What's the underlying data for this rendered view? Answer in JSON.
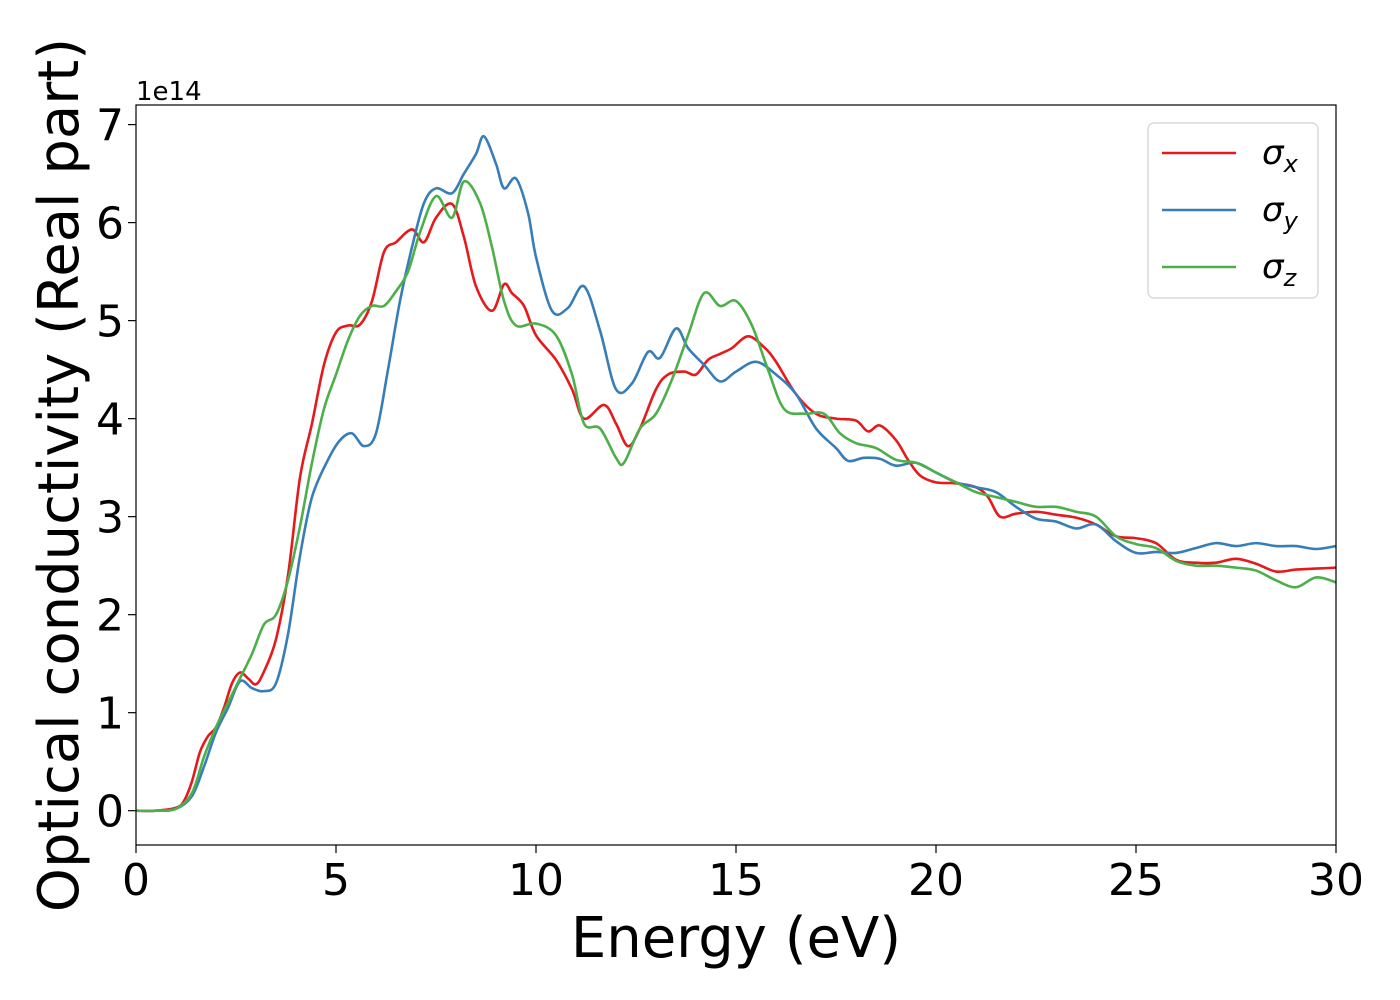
{
  "chart_data": {
    "type": "line",
    "title": "",
    "xlabel": "Energy (eV)",
    "ylabel": "Optical conductivity (Real part)",
    "y_multiplier": "1e14",
    "xlim": [
      0,
      30
    ],
    "ylim": [
      -0.35,
      7.2
    ],
    "x_ticks": [
      0,
      5,
      10,
      15,
      20,
      25,
      30
    ],
    "x_tick_labels": [
      "0",
      "5",
      "10",
      "15",
      "20",
      "25",
      "30"
    ],
    "y_ticks": [
      0,
      1,
      2,
      3,
      4,
      5,
      6,
      7
    ],
    "y_tick_labels": [
      "0",
      "1",
      "2",
      "3",
      "4",
      "5",
      "6",
      "7"
    ],
    "grid": false,
    "legend_position": "top-right",
    "series": [
      {
        "name": "σx",
        "legend_base": "σ",
        "legend_sub": "x",
        "color": "#e41a1c",
        "points": [
          [
            0,
            0
          ],
          [
            0.5,
            0
          ],
          [
            1.0,
            0.03
          ],
          [
            1.2,
            0.1
          ],
          [
            1.4,
            0.3
          ],
          [
            1.6,
            0.6
          ],
          [
            1.8,
            0.76
          ],
          [
            2.0,
            0.85
          ],
          [
            2.2,
            1.05
          ],
          [
            2.4,
            1.3
          ],
          [
            2.6,
            1.41
          ],
          [
            2.8,
            1.35
          ],
          [
            3.0,
            1.29
          ],
          [
            3.2,
            1.42
          ],
          [
            3.5,
            1.75
          ],
          [
            3.8,
            2.4
          ],
          [
            4.1,
            3.4
          ],
          [
            4.4,
            3.95
          ],
          [
            4.7,
            4.55
          ],
          [
            5.0,
            4.88
          ],
          [
            5.3,
            4.95
          ],
          [
            5.6,
            4.96
          ],
          [
            5.9,
            5.2
          ],
          [
            6.2,
            5.7
          ],
          [
            6.5,
            5.8
          ],
          [
            6.9,
            5.93
          ],
          [
            7.2,
            5.8
          ],
          [
            7.5,
            6.05
          ],
          [
            7.9,
            6.19
          ],
          [
            8.2,
            5.85
          ],
          [
            8.5,
            5.35
          ],
          [
            8.9,
            5.1
          ],
          [
            9.2,
            5.37
          ],
          [
            9.4,
            5.28
          ],
          [
            9.7,
            5.15
          ],
          [
            10.0,
            4.85
          ],
          [
            10.5,
            4.6
          ],
          [
            10.9,
            4.3
          ],
          [
            11.2,
            4.0
          ],
          [
            11.7,
            4.14
          ],
          [
            12.0,
            3.95
          ],
          [
            12.3,
            3.72
          ],
          [
            12.6,
            3.9
          ],
          [
            13.0,
            4.3
          ],
          [
            13.3,
            4.45
          ],
          [
            13.7,
            4.48
          ],
          [
            14.0,
            4.45
          ],
          [
            14.3,
            4.6
          ],
          [
            14.6,
            4.66
          ],
          [
            14.9,
            4.72
          ],
          [
            15.3,
            4.84
          ],
          [
            15.7,
            4.73
          ],
          [
            16.0,
            4.58
          ],
          [
            16.5,
            4.25
          ],
          [
            17.0,
            4.05
          ],
          [
            17.5,
            4.0
          ],
          [
            18.0,
            3.98
          ],
          [
            18.3,
            3.87
          ],
          [
            18.6,
            3.93
          ],
          [
            19.0,
            3.78
          ],
          [
            19.3,
            3.58
          ],
          [
            19.6,
            3.42
          ],
          [
            20.0,
            3.35
          ],
          [
            20.5,
            3.34
          ],
          [
            21.0,
            3.3
          ],
          [
            21.3,
            3.2
          ],
          [
            21.6,
            3.0
          ],
          [
            22.0,
            3.03
          ],
          [
            22.5,
            3.05
          ],
          [
            23.0,
            3.02
          ],
          [
            23.5,
            2.99
          ],
          [
            24.0,
            2.92
          ],
          [
            24.5,
            2.8
          ],
          [
            25.0,
            2.78
          ],
          [
            25.5,
            2.73
          ],
          [
            26.0,
            2.56
          ],
          [
            26.5,
            2.53
          ],
          [
            27.0,
            2.53
          ],
          [
            27.5,
            2.57
          ],
          [
            28.0,
            2.52
          ],
          [
            28.5,
            2.44
          ],
          [
            29.0,
            2.46
          ],
          [
            29.5,
            2.47
          ],
          [
            30.0,
            2.48
          ]
        ]
      },
      {
        "name": "σy",
        "legend_base": "σ",
        "legend_sub": "y",
        "color": "#377eb8",
        "points": [
          [
            0,
            0
          ],
          [
            0.5,
            0
          ],
          [
            1.0,
            0.02
          ],
          [
            1.4,
            0.15
          ],
          [
            1.7,
            0.45
          ],
          [
            2.0,
            0.8
          ],
          [
            2.3,
            1.05
          ],
          [
            2.6,
            1.32
          ],
          [
            2.9,
            1.25
          ],
          [
            3.2,
            1.22
          ],
          [
            3.5,
            1.3
          ],
          [
            3.8,
            1.8
          ],
          [
            4.1,
            2.6
          ],
          [
            4.4,
            3.2
          ],
          [
            4.8,
            3.58
          ],
          [
            5.1,
            3.78
          ],
          [
            5.4,
            3.85
          ],
          [
            5.7,
            3.72
          ],
          [
            6.0,
            3.85
          ],
          [
            6.3,
            4.5
          ],
          [
            6.6,
            5.2
          ],
          [
            6.9,
            5.75
          ],
          [
            7.2,
            6.2
          ],
          [
            7.5,
            6.35
          ],
          [
            7.9,
            6.3
          ],
          [
            8.2,
            6.5
          ],
          [
            8.5,
            6.7
          ],
          [
            8.7,
            6.88
          ],
          [
            9.0,
            6.6
          ],
          [
            9.2,
            6.35
          ],
          [
            9.5,
            6.45
          ],
          [
            9.8,
            6.1
          ],
          [
            10.0,
            5.65
          ],
          [
            10.4,
            5.1
          ],
          [
            10.8,
            5.13
          ],
          [
            11.2,
            5.35
          ],
          [
            11.6,
            4.9
          ],
          [
            12.0,
            4.3
          ],
          [
            12.4,
            4.36
          ],
          [
            12.8,
            4.68
          ],
          [
            13.1,
            4.62
          ],
          [
            13.5,
            4.92
          ],
          [
            13.8,
            4.72
          ],
          [
            14.2,
            4.55
          ],
          [
            14.6,
            4.38
          ],
          [
            15.0,
            4.48
          ],
          [
            15.5,
            4.58
          ],
          [
            16.0,
            4.45
          ],
          [
            16.5,
            4.25
          ],
          [
            17.0,
            3.9
          ],
          [
            17.5,
            3.7
          ],
          [
            17.8,
            3.57
          ],
          [
            18.2,
            3.6
          ],
          [
            18.6,
            3.59
          ],
          [
            19.0,
            3.52
          ],
          [
            19.5,
            3.55
          ],
          [
            20.0,
            3.45
          ],
          [
            20.5,
            3.35
          ],
          [
            21.0,
            3.3
          ],
          [
            21.5,
            3.25
          ],
          [
            22.0,
            3.1
          ],
          [
            22.5,
            2.98
          ],
          [
            23.0,
            2.95
          ],
          [
            23.5,
            2.88
          ],
          [
            24.0,
            2.92
          ],
          [
            24.5,
            2.75
          ],
          [
            25.0,
            2.63
          ],
          [
            25.5,
            2.64
          ],
          [
            26.0,
            2.63
          ],
          [
            26.5,
            2.68
          ],
          [
            27.0,
            2.73
          ],
          [
            27.5,
            2.7
          ],
          [
            28.0,
            2.73
          ],
          [
            28.5,
            2.7
          ],
          [
            29.0,
            2.7
          ],
          [
            29.5,
            2.67
          ],
          [
            30.0,
            2.7
          ]
        ]
      },
      {
        "name": "σz",
        "legend_base": "σ",
        "legend_sub": "z",
        "color": "#4daf4a",
        "points": [
          [
            0,
            0
          ],
          [
            0.5,
            0
          ],
          [
            1.0,
            0.02
          ],
          [
            1.4,
            0.18
          ],
          [
            1.7,
            0.55
          ],
          [
            2.0,
            0.85
          ],
          [
            2.3,
            1.1
          ],
          [
            2.6,
            1.35
          ],
          [
            2.9,
            1.6
          ],
          [
            3.2,
            1.9
          ],
          [
            3.5,
            2.0
          ],
          [
            3.8,
            2.35
          ],
          [
            4.1,
            2.9
          ],
          [
            4.4,
            3.55
          ],
          [
            4.7,
            4.1
          ],
          [
            5.0,
            4.45
          ],
          [
            5.3,
            4.8
          ],
          [
            5.6,
            5.05
          ],
          [
            5.9,
            5.15
          ],
          [
            6.2,
            5.15
          ],
          [
            6.5,
            5.3
          ],
          [
            6.8,
            5.5
          ],
          [
            7.1,
            5.9
          ],
          [
            7.5,
            6.27
          ],
          [
            7.9,
            6.05
          ],
          [
            8.2,
            6.42
          ],
          [
            8.6,
            6.2
          ],
          [
            8.9,
            5.75
          ],
          [
            9.2,
            5.2
          ],
          [
            9.5,
            4.95
          ],
          [
            10.0,
            4.97
          ],
          [
            10.5,
            4.85
          ],
          [
            10.9,
            4.45
          ],
          [
            11.2,
            3.95
          ],
          [
            11.6,
            3.9
          ],
          [
            12.0,
            3.6
          ],
          [
            12.2,
            3.55
          ],
          [
            12.6,
            3.9
          ],
          [
            13.0,
            4.05
          ],
          [
            13.4,
            4.4
          ],
          [
            13.8,
            4.85
          ],
          [
            14.2,
            5.28
          ],
          [
            14.6,
            5.15
          ],
          [
            15.0,
            5.2
          ],
          [
            15.4,
            4.95
          ],
          [
            15.8,
            4.5
          ],
          [
            16.2,
            4.1
          ],
          [
            16.7,
            4.05
          ],
          [
            17.2,
            4.05
          ],
          [
            17.6,
            3.85
          ],
          [
            18.0,
            3.75
          ],
          [
            18.5,
            3.7
          ],
          [
            19.0,
            3.58
          ],
          [
            19.5,
            3.55
          ],
          [
            20.0,
            3.45
          ],
          [
            20.5,
            3.35
          ],
          [
            21.0,
            3.25
          ],
          [
            21.5,
            3.2
          ],
          [
            22.0,
            3.15
          ],
          [
            22.5,
            3.1
          ],
          [
            23.0,
            3.1
          ],
          [
            23.5,
            3.05
          ],
          [
            24.0,
            3.0
          ],
          [
            24.5,
            2.8
          ],
          [
            25.0,
            2.72
          ],
          [
            25.5,
            2.68
          ],
          [
            26.0,
            2.55
          ],
          [
            26.5,
            2.5
          ],
          [
            27.0,
            2.5
          ],
          [
            27.5,
            2.48
          ],
          [
            28.0,
            2.45
          ],
          [
            28.5,
            2.35
          ],
          [
            29.0,
            2.28
          ],
          [
            29.5,
            2.38
          ],
          [
            30.0,
            2.33
          ]
        ]
      }
    ]
  }
}
